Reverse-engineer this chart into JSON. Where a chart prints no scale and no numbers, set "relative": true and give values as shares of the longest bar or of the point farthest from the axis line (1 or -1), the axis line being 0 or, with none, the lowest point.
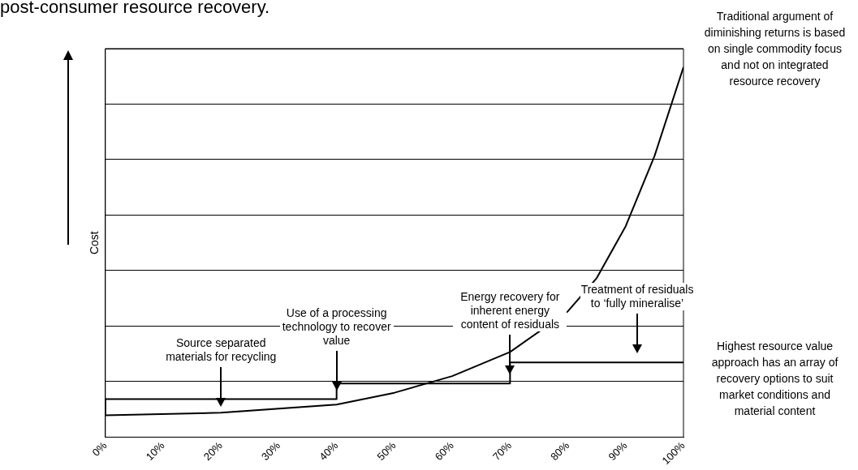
{
  "chart_data": {
    "type": "line",
    "title": "post-consumer resource recovery.",
    "ylabel": "Cost",
    "relative": true,
    "grid": "y",
    "legend": false,
    "marker": "none",
    "line_style": "solid",
    "xlim": [
      0,
      100
    ],
    "xticks": [
      {
        "value": 0,
        "label": "0%"
      },
      {
        "value": 10,
        "label": "10%"
      },
      {
        "value": 20,
        "label": "20%"
      },
      {
        "value": 30,
        "label": "30%"
      },
      {
        "value": 40,
        "label": "40%"
      },
      {
        "value": 50,
        "label": "50%"
      },
      {
        "value": 60,
        "label": "60%"
      },
      {
        "value": 70,
        "label": "70%"
      },
      {
        "value": 80,
        "label": "80%"
      },
      {
        "value": 90,
        "label": "90%"
      },
      {
        "value": 100,
        "label": "100%"
      }
    ],
    "series": [
      {
        "type": "line",
        "color": "#000000",
        "x": [
          0,
          20,
          40,
          50,
          60,
          70,
          80,
          85,
          90,
          95,
          100
        ],
        "values": [
          0.059,
          0.066,
          0.088,
          0.12,
          0.165,
          0.23,
          0.34,
          0.43,
          0.57,
          0.76,
          1.0
        ]
      },
      {
        "type": "step",
        "color": "#000000",
        "x": [
          0,
          40,
          70,
          92,
          100
        ],
        "values": [
          0.059,
          0.103,
          0.145,
          0.202,
          0.202
        ]
      }
    ],
    "annotations": [
      "Source separated materials for recycling",
      "Use of a processing technology to recover value",
      "Energy recovery for inherent energy content of residuals",
      "Treatment of residuals to ‘fully mineralise’",
      "Traditional argument of diminishing returns is based on single commodity focus and not on integrated resource recovery",
      "Highest resource value approach has an array of recovery options to suit market conditions and material content"
    ]
  }
}
